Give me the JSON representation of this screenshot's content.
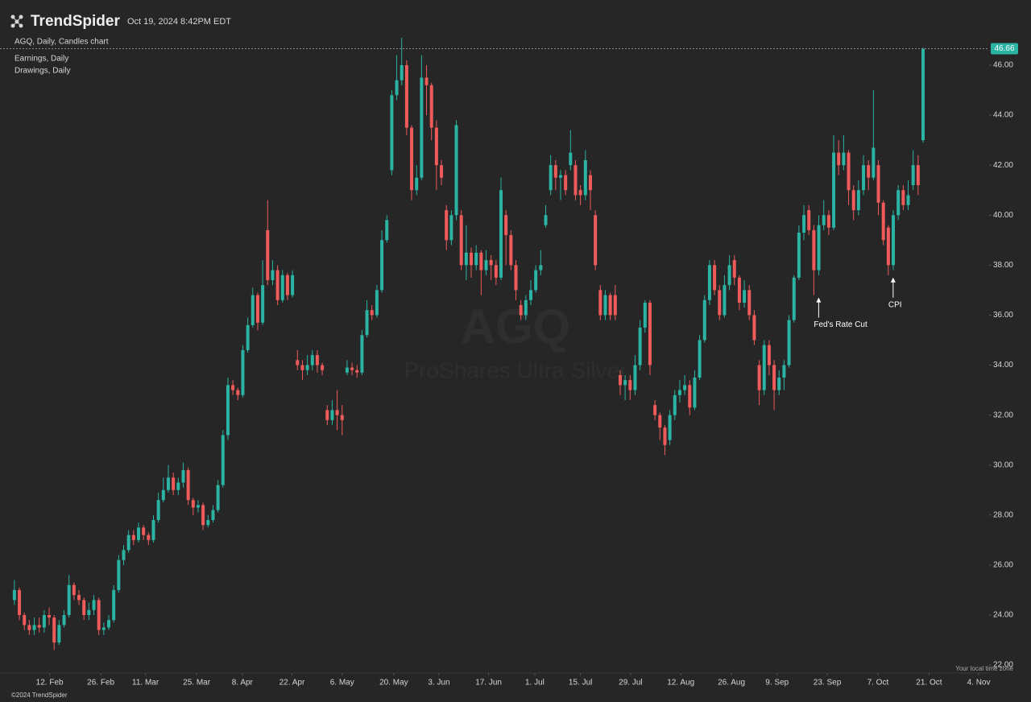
{
  "header": {
    "brand": "TrendSpider",
    "timestamp": "Oct 19, 2024 8:42PM EDT",
    "studies": [
      "Earnings, Daily",
      "Drawings, Daily"
    ],
    "timezone_note": "Your local time zone",
    "copyright": "©2024 TrendSpider"
  },
  "chart_data": {
    "type": "candlestick",
    "title": "AGQ, Daily, Candles chart",
    "watermark": "ProShares Ultra Silver",
    "grid": false,
    "annotations": [
      "Fed's Rate Cut",
      "CPI"
    ],
    "xlim": [
      -2.9,
      196.3
    ],
    "xticks": [
      {
        "value": 7.1,
        "label": "12. Feb"
      },
      {
        "value": 17.4,
        "label": "26. Feb"
      },
      {
        "value": 26.4,
        "label": "11. Mar"
      },
      {
        "value": 36.7,
        "label": "25. Mar"
      },
      {
        "value": 45.9,
        "label": "8. Apr"
      },
      {
        "value": 55.9,
        "label": "22. Apr"
      },
      {
        "value": 66.0,
        "label": "6. May"
      },
      {
        "value": 76.4,
        "label": "20. May"
      },
      {
        "value": 85.5,
        "label": "3. Jun"
      },
      {
        "value": 95.5,
        "label": "17. Jun"
      },
      {
        "value": 104.8,
        "label": "1. Jul"
      },
      {
        "value": 114.0,
        "label": "15. Jul"
      },
      {
        "value": 124.1,
        "label": "29. Jul"
      },
      {
        "value": 134.2,
        "label": "12. Aug"
      },
      {
        "value": 144.4,
        "label": "26. Aug"
      },
      {
        "value": 153.6,
        "label": "9. Sep"
      },
      {
        "value": 163.7,
        "label": "23. Sep"
      },
      {
        "value": 173.9,
        "label": "7. Oct"
      },
      {
        "value": 184.2,
        "label": "21. Oct"
      },
      {
        "value": 194.2,
        "label": "4. Nov"
      }
    ],
    "ylim": [
      21.68,
      47.32
    ],
    "yticks": [
      {
        "value": 22,
        "label": "22.00"
      },
      {
        "value": 24,
        "label": "24.00"
      },
      {
        "value": 26,
        "label": "26.00"
      },
      {
        "value": 28,
        "label": "28.00"
      },
      {
        "value": 30,
        "label": "30.00"
      },
      {
        "value": 32,
        "label": "32.00"
      },
      {
        "value": 34,
        "label": "34.00"
      },
      {
        "value": 36,
        "label": "36.00"
      },
      {
        "value": 38,
        "label": "38.00"
      },
      {
        "value": 40,
        "label": "40.00"
      },
      {
        "value": 42,
        "label": "42.00"
      },
      {
        "value": 44,
        "label": "44.00"
      },
      {
        "value": 46,
        "label": "46.00"
      }
    ],
    "series": [
      {
        "name": "AGQ",
        "up_color": "#2bb3a3",
        "down_color": "#ef5b5b",
        "open": [
          24.6,
          25.0,
          24.0,
          23.6,
          23.4,
          23.6,
          23.5,
          24.0,
          23.9,
          22.9,
          23.6,
          24.0,
          25.2,
          24.8,
          24.6,
          24.0,
          24.2,
          24.6,
          23.4,
          23.5,
          23.8,
          25.0,
          26.2,
          26.6,
          27.2,
          27.0,
          27.5,
          27.2,
          27.0,
          27.8,
          28.6,
          29.0,
          29.5,
          29.0,
          29.3,
          29.8,
          28.6,
          28.3,
          28.4,
          27.6,
          27.8,
          28.2,
          29.2,
          31.2,
          33.2,
          33.0,
          32.8,
          34.6,
          35.6,
          36.8,
          35.7,
          39.4,
          37.4,
          37.8,
          36.6,
          37.6,
          36.8,
          34.2,
          34.0,
          33.8,
          34.0,
          34.4,
          34.0,
          32.2,
          31.8,
          32.2,
          32.0,
          33.7,
          33.9,
          33.8,
          33.7,
          35.2,
          36.2,
          36.0,
          37.0,
          39.0,
          41.8,
          44.8,
          45.4,
          46.0,
          43.5,
          41.0,
          41.5,
          45.5,
          45.2,
          43.5,
          42.0,
          40.2,
          39.0,
          40.0,
          40.0,
          38.0,
          38.5,
          38.0,
          38.5,
          37.8,
          38.2,
          38.0,
          37.5,
          40.0,
          39.2,
          38.0,
          36.4,
          36.0,
          36.6,
          37.0,
          37.8,
          39.6,
          41.0,
          42.0,
          41.5,
          41.6,
          42.0,
          42.0,
          41.0,
          40.8,
          41.6,
          40.0,
          37.0,
          36.0,
          36.8,
          36.8,
          33.6,
          33.2,
          33.4,
          33.0,
          34.0,
          35.5,
          36.5,
          32.4,
          32.0,
          31.5,
          31.0,
          32.0,
          32.8,
          33.0,
          33.2,
          32.3,
          33.5,
          35.0,
          36.6,
          38.0,
          37.0,
          36.0,
          37.2,
          38.2,
          37.5,
          36.5,
          37.0,
          36.0,
          34.0,
          33.0,
          34.8,
          34.0,
          33.0,
          33.5,
          34.0,
          35.8,
          37.5,
          39.3,
          40.2,
          39.4,
          37.8,
          39.6,
          40.0,
          39.5,
          42.5,
          42.0,
          42.5,
          41.0,
          40.2,
          41.0,
          42.0,
          41.5,
          42.0,
          40.5,
          39.5,
          38.0,
          40.0,
          41.0,
          40.4,
          41.2,
          42.0,
          43.0
        ],
        "high": [
          25.4,
          25.1,
          24.1,
          23.8,
          23.9,
          23.9,
          24.2,
          24.3,
          24.0,
          23.8,
          24.2,
          25.6,
          25.3,
          25.0,
          24.7,
          24.5,
          24.8,
          24.7,
          23.7,
          24.0,
          25.2,
          26.4,
          26.8,
          27.4,
          27.4,
          27.7,
          27.6,
          27.3,
          28.0,
          28.9,
          29.5,
          30.0,
          29.7,
          29.5,
          30.1,
          29.9,
          28.7,
          28.6,
          28.5,
          28.0,
          28.4,
          29.4,
          31.4,
          33.5,
          33.4,
          33.1,
          34.8,
          35.9,
          37.1,
          36.9,
          38.2,
          40.6,
          38.2,
          38.0,
          37.8,
          37.7,
          37.8,
          34.6,
          34.2,
          34.4,
          34.6,
          34.6,
          34.1,
          32.4,
          32.6,
          33.0,
          32.4,
          34.2,
          34.1,
          34.0,
          35.4,
          36.6,
          36.4,
          37.2,
          39.4,
          40.0,
          45.0,
          46.4,
          47.1,
          46.2,
          43.6,
          42.0,
          46.4,
          46.0,
          45.3,
          43.8,
          42.2,
          40.4,
          40.2,
          43.8,
          40.2,
          39.6,
          38.7,
          38.8,
          38.6,
          38.6,
          38.4,
          38.2,
          41.5,
          40.2,
          39.4,
          38.2,
          36.6,
          36.8,
          37.4,
          38.0,
          38.6,
          40.4,
          42.4,
          42.2,
          41.8,
          41.8,
          43.4,
          42.2,
          41.2,
          42.6,
          41.8,
          40.2,
          37.2,
          37.0,
          36.9,
          37.2,
          33.8,
          33.6,
          33.6,
          34.4,
          35.8,
          36.6,
          36.6,
          32.6,
          32.1,
          31.6,
          32.2,
          33.0,
          33.4,
          33.6,
          33.4,
          33.8,
          35.2,
          36.8,
          38.2,
          38.2,
          37.2,
          37.6,
          38.4,
          38.4,
          37.6,
          37.4,
          37.2,
          36.2,
          34.2,
          35.0,
          35.0,
          34.2,
          33.8,
          34.2,
          36.0,
          37.6,
          39.6,
          40.4,
          40.4,
          39.6,
          40.0,
          40.6,
          40.2,
          43.2,
          43.0,
          43.2,
          42.6,
          41.2,
          41.4,
          42.4,
          42.2,
          45.0,
          42.2,
          40.6,
          39.6,
          40.2,
          41.2,
          41.2,
          41.4,
          42.6,
          42.4,
          46.7
        ],
        "low": [
          24.4,
          23.8,
          23.4,
          23.2,
          23.2,
          23.3,
          23.3,
          23.6,
          22.6,
          22.8,
          23.5,
          23.9,
          24.6,
          24.4,
          23.8,
          23.8,
          24.0,
          23.2,
          23.2,
          23.4,
          23.7,
          24.9,
          26.0,
          26.5,
          26.8,
          26.9,
          27.0,
          26.8,
          26.9,
          27.7,
          28.5,
          28.9,
          28.8,
          28.8,
          29.1,
          28.4,
          28.0,
          28.1,
          27.4,
          27.5,
          27.7,
          28.1,
          29.1,
          31.0,
          32.8,
          32.6,
          32.7,
          34.5,
          35.5,
          35.4,
          35.6,
          37.2,
          37.2,
          36.4,
          36.5,
          36.6,
          36.7,
          33.8,
          33.4,
          33.6,
          33.8,
          33.7,
          33.6,
          31.6,
          31.6,
          31.4,
          31.2,
          33.6,
          33.6,
          33.5,
          33.6,
          35.1,
          35.8,
          35.9,
          36.9,
          38.9,
          41.6,
          44.6,
          45.2,
          43.2,
          40.6,
          40.8,
          41.4,
          44.0,
          43.0,
          41.0,
          41.2,
          38.6,
          38.8,
          39.8,
          37.8,
          37.4,
          37.5,
          37.8,
          36.8,
          37.6,
          37.4,
          37.2,
          37.4,
          38.0,
          37.8,
          36.6,
          35.8,
          35.8,
          36.4,
          36.9,
          37.6,
          39.5,
          40.8,
          41.0,
          40.6,
          40.8,
          41.8,
          40.6,
          40.4,
          40.6,
          40.2,
          37.8,
          35.8,
          35.8,
          35.8,
          35.8,
          32.8,
          32.6,
          32.6,
          32.8,
          33.8,
          35.3,
          33.6,
          31.8,
          31.0,
          30.4,
          30.8,
          31.8,
          32.5,
          32.8,
          32.0,
          32.2,
          33.4,
          34.9,
          36.4,
          36.8,
          35.8,
          35.9,
          37.0,
          37.2,
          36.2,
          36.3,
          35.8,
          34.8,
          32.4,
          32.8,
          33.6,
          32.2,
          32.8,
          33.0,
          33.9,
          35.7,
          37.4,
          39.0,
          39.2,
          36.8,
          37.6,
          39.4,
          39.2,
          39.4,
          41.6,
          41.8,
          40.4,
          39.8,
          40.0,
          40.8,
          41.0,
          41.4,
          40.0,
          38.8,
          37.6,
          37.8,
          39.8,
          40.2,
          40.2,
          41.0,
          40.8,
          42.9
        ],
        "close": [
          25.0,
          24.0,
          23.6,
          23.4,
          23.6,
          23.5,
          24.0,
          23.9,
          22.9,
          23.6,
          24.0,
          25.2,
          24.8,
          24.6,
          24.0,
          24.2,
          24.6,
          23.4,
          23.5,
          23.8,
          25.0,
          26.2,
          26.6,
          27.2,
          27.0,
          27.5,
          27.2,
          27.0,
          27.8,
          28.6,
          29.0,
          29.5,
          29.0,
          29.3,
          29.8,
          28.6,
          28.3,
          28.4,
          27.6,
          27.8,
          28.2,
          29.2,
          31.2,
          33.2,
          33.0,
          32.8,
          34.6,
          35.6,
          36.8,
          35.7,
          37.2,
          37.4,
          37.8,
          36.6,
          37.6,
          36.8,
          37.6,
          34.0,
          33.8,
          34.0,
          34.4,
          34.0,
          33.8,
          31.8,
          32.2,
          32.0,
          31.8,
          33.9,
          33.8,
          33.7,
          35.2,
          36.2,
          36.0,
          37.0,
          39.0,
          39.8,
          44.8,
          45.4,
          46.0,
          43.5,
          41.0,
          41.5,
          45.5,
          45.2,
          43.5,
          42.0,
          41.5,
          39.0,
          40.0,
          43.6,
          38.0,
          38.5,
          38.0,
          38.5,
          37.8,
          38.2,
          38.0,
          37.5,
          41.0,
          39.2,
          38.0,
          37.0,
          36.0,
          36.6,
          37.0,
          37.8,
          38.0,
          40.0,
          42.0,
          41.5,
          41.6,
          41.0,
          42.5,
          40.8,
          40.8,
          42.2,
          41.0,
          38.0,
          36.0,
          36.8,
          36.0,
          36.0,
          33.2,
          33.4,
          33.0,
          34.0,
          35.5,
          36.5,
          34.0,
          32.0,
          31.5,
          30.8,
          32.0,
          32.8,
          33.0,
          33.2,
          32.3,
          33.5,
          35.0,
          36.6,
          38.0,
          37.0,
          36.0,
          37.2,
          38.0,
          37.5,
          36.5,
          37.0,
          36.0,
          35.0,
          33.0,
          34.8,
          34.0,
          33.0,
          33.5,
          34.0,
          35.8,
          37.5,
          39.3,
          40.0,
          39.4,
          37.8,
          39.6,
          40.0,
          39.5,
          42.5,
          42.0,
          42.5,
          41.0,
          40.2,
          41.0,
          42.0,
          41.5,
          42.7,
          40.5,
          39.0,
          38.0,
          40.0,
          41.0,
          40.4,
          40.8,
          42.0,
          41.2,
          46.66
        ]
      }
    ]
  }
}
